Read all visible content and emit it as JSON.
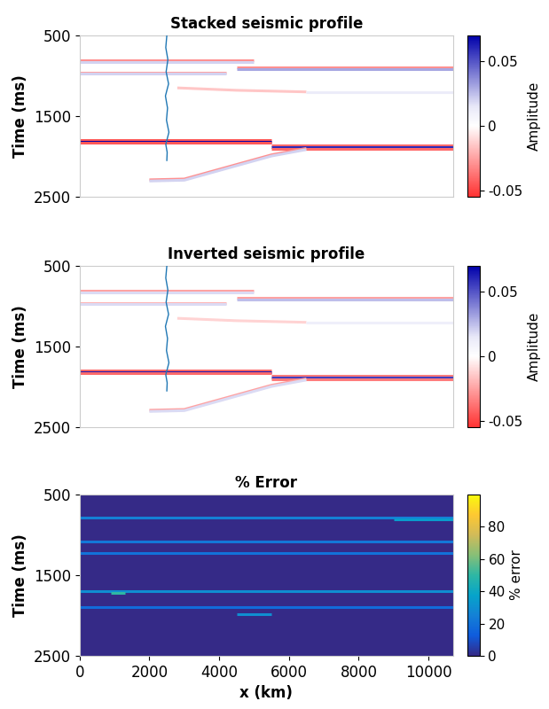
{
  "chart_data": [
    {
      "type": "line",
      "title": "Stacked seismic profile",
      "y_label": "Time (ms)",
      "xlim": [
        0,
        10700
      ],
      "ylim": [
        2500,
        500
      ],
      "yticks": [
        500,
        1500,
        2500
      ],
      "tick_labels": "y",
      "colorbar": {
        "label": "Amplitude",
        "range": [
          -0.055,
          0.07
        ],
        "ticks": [
          -0.05,
          0,
          0.05
        ]
      },
      "series": [
        {
          "x": [
            0,
            5000
          ],
          "values": [
            810,
            810
          ],
          "amplitude": -0.03
        },
        {
          "x": [
            0,
            5000
          ],
          "values": [
            825,
            825
          ],
          "amplitude": 0.02
        },
        {
          "x": [
            4500,
            10700
          ],
          "values": [
            900,
            900
          ],
          "amplitude": -0.03
        },
        {
          "x": [
            4500,
            10700
          ],
          "values": [
            915,
            915
          ],
          "amplitude": 0.03
        },
        {
          "x": [
            0,
            4200
          ],
          "values": [
            960,
            960
          ],
          "amplitude": -0.025
        },
        {
          "x": [
            0,
            4200
          ],
          "values": [
            975,
            975
          ],
          "amplitude": 0.02
        },
        {
          "x": [
            2800,
            4500,
            6500
          ],
          "values": [
            1150,
            1180,
            1200
          ],
          "amplitude": -0.015
        },
        {
          "x": [
            6500,
            10700
          ],
          "values": [
            1200,
            1200
          ],
          "amplitude": 0.012
        },
        {
          "x": [
            0,
            5500
          ],
          "values": [
            1795,
            1795
          ],
          "amplitude": -0.045
        },
        {
          "x": [
            0,
            5500
          ],
          "values": [
            1815,
            1815
          ],
          "amplitude": 0.07
        },
        {
          "x": [
            0,
            5500
          ],
          "values": [
            1835,
            1835
          ],
          "amplitude": -0.045
        },
        {
          "x": [
            5500,
            10700
          ],
          "values": [
            1865,
            1865
          ],
          "amplitude": -0.04
        },
        {
          "x": [
            5500,
            10700
          ],
          "values": [
            1885,
            1885
          ],
          "amplitude": 0.06
        },
        {
          "x": [
            5500,
            10700
          ],
          "values": [
            1905,
            1905
          ],
          "amplitude": -0.04
        },
        {
          "x": [
            2000,
            3000,
            4500,
            5500,
            6500
          ],
          "values": [
            2290,
            2280,
            2100,
            1980,
            1900
          ],
          "amplitude": -0.03
        },
        {
          "x": [
            2000,
            3000,
            4500,
            5500,
            6500
          ],
          "values": [
            2305,
            2295,
            2115,
            1995,
            1915
          ],
          "amplitude": 0.02
        },
        {
          "type": "well",
          "color": "#1f77b4",
          "x": [
            2500,
            2470,
            2530,
            2480,
            2550,
            2460,
            2520,
            2490,
            2560,
            2470,
            2510,
            2500
          ],
          "values": [
            500,
            650,
            800,
            950,
            1100,
            1250,
            1400,
            1550,
            1700,
            1850,
            1950,
            2050
          ]
        }
      ]
    },
    {
      "type": "line",
      "title": "Inverted seismic profile",
      "y_label": "Time (ms)",
      "xlim": [
        0,
        10700
      ],
      "ylim": [
        2500,
        500
      ],
      "yticks": [
        500,
        1500,
        2500
      ],
      "tick_labels": "y",
      "colorbar": {
        "label": "Amplitude",
        "range": [
          -0.055,
          0.07
        ],
        "ticks": [
          -0.05,
          0,
          0.05
        ]
      },
      "series": [
        {
          "x": [
            0,
            5000
          ],
          "values": [
            810,
            810
          ],
          "amplitude": -0.025
        },
        {
          "x": [
            0,
            5000
          ],
          "values": [
            825,
            825
          ],
          "amplitude": 0.018
        },
        {
          "x": [
            4500,
            10700
          ],
          "values": [
            900,
            900
          ],
          "amplitude": -0.025
        },
        {
          "x": [
            4500,
            10700
          ],
          "values": [
            915,
            915
          ],
          "amplitude": 0.025
        },
        {
          "x": [
            0,
            4200
          ],
          "values": [
            960,
            960
          ],
          "amplitude": -0.02
        },
        {
          "x": [
            0,
            4200
          ],
          "values": [
            975,
            975
          ],
          "amplitude": 0.018
        },
        {
          "x": [
            2800,
            4500,
            6500
          ],
          "values": [
            1150,
            1180,
            1200
          ],
          "amplitude": -0.012
        },
        {
          "x": [
            6500,
            10700
          ],
          "values": [
            1200,
            1200
          ],
          "amplitude": 0.01
        },
        {
          "x": [
            0,
            5500
          ],
          "values": [
            1795,
            1795
          ],
          "amplitude": -0.04
        },
        {
          "x": [
            0,
            5500
          ],
          "values": [
            1815,
            1815
          ],
          "amplitude": 0.065
        },
        {
          "x": [
            0,
            5500
          ],
          "values": [
            1835,
            1835
          ],
          "amplitude": -0.04
        },
        {
          "x": [
            5500,
            10700
          ],
          "values": [
            1865,
            1865
          ],
          "amplitude": -0.035
        },
        {
          "x": [
            5500,
            10700
          ],
          "values": [
            1885,
            1885
          ],
          "amplitude": 0.055
        },
        {
          "x": [
            5500,
            10700
          ],
          "values": [
            1905,
            1905
          ],
          "amplitude": -0.035
        },
        {
          "x": [
            2000,
            3000,
            4500,
            5500,
            6500
          ],
          "values": [
            2290,
            2280,
            2100,
            1980,
            1900
          ],
          "amplitude": -0.025
        },
        {
          "x": [
            2000,
            3000,
            4500,
            5500,
            6500
          ],
          "values": [
            2305,
            2295,
            2115,
            1995,
            1915
          ],
          "amplitude": 0.018
        },
        {
          "type": "well",
          "color": "#1f77b4",
          "x": [
            2500,
            2470,
            2530,
            2480,
            2550,
            2460,
            2520,
            2490,
            2560,
            2470,
            2510,
            2500
          ],
          "values": [
            500,
            650,
            800,
            950,
            1100,
            1250,
            1400,
            1550,
            1700,
            1850,
            1950,
            2050
          ]
        }
      ]
    },
    {
      "type": "line",
      "title": "% Error",
      "x_label": "x (km)",
      "y_label": "Time (ms)",
      "xlim": [
        0,
        10700
      ],
      "ylim": [
        2500,
        500
      ],
      "xticks": [
        0,
        2000,
        4000,
        6000,
        8000,
        10000
      ],
      "yticks": [
        500,
        1500,
        2500
      ],
      "colorbar": {
        "label": "% error",
        "range": [
          0,
          100
        ],
        "ticks": [
          0,
          20,
          40,
          60,
          80
        ]
      },
      "series": [
        {
          "x": [
            0,
            10700
          ],
          "values": [
            790,
            790
          ],
          "amplitude": 25
        },
        {
          "x": [
            9000,
            10700
          ],
          "values": [
            810,
            810
          ],
          "amplitude": 35
        },
        {
          "x": [
            0,
            10700
          ],
          "values": [
            1080,
            1080
          ],
          "amplitude": 22
        },
        {
          "x": [
            0,
            10700
          ],
          "values": [
            1230,
            1230
          ],
          "amplitude": 20
        },
        {
          "x": [
            0,
            10700
          ],
          "values": [
            1700,
            1700
          ],
          "amplitude": 30
        },
        {
          "x": [
            900,
            1300
          ],
          "values": [
            1720,
            1720
          ],
          "amplitude": 50
        },
        {
          "x": [
            0,
            10700
          ],
          "values": [
            1900,
            1900
          ],
          "amplitude": 18
        },
        {
          "x": [
            4500,
            5500
          ],
          "values": [
            1980,
            1980
          ],
          "amplitude": 30
        }
      ]
    }
  ]
}
